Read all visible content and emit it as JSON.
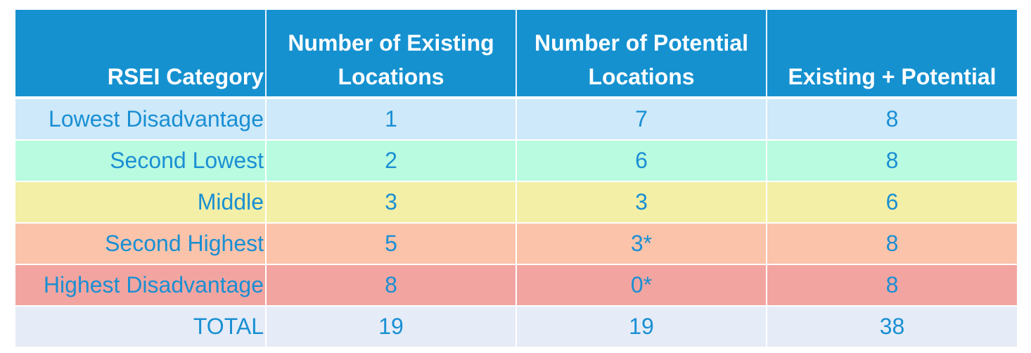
{
  "colors": {
    "header": "#1591d0",
    "text": "#1a8fd3",
    "rows": [
      "#cde9fa",
      "#b9fbe0",
      "#f3efa6",
      "#fbc3aa",
      "#f2a5a0",
      "#e5ecf7"
    ]
  },
  "headers": [
    "RSEI Category",
    "Number of Existing Locations",
    "Number of Potential Locations",
    "Existing + Potential"
  ],
  "rows": [
    [
      "Lowest Disadvantage",
      "1",
      "7",
      "8"
    ],
    [
      "Second Lowest",
      "2",
      "6",
      "8"
    ],
    [
      "Middle",
      "3",
      "3",
      "6"
    ],
    [
      "Second Highest",
      "5",
      "3*",
      "8"
    ],
    [
      "Highest Disadvantage",
      "8",
      "0*",
      "8"
    ],
    [
      "TOTAL",
      "19",
      "19",
      "38"
    ]
  ]
}
